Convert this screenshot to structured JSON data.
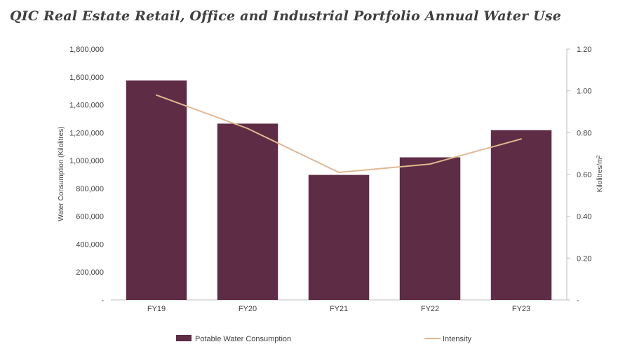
{
  "chart_data": {
    "type": "bar",
    "title": "QIC Real Estate Retail, Office and Industrial Portfolio Annual Water Use",
    "categories": [
      "FY19",
      "FY20",
      "FY21",
      "FY22",
      "FY23"
    ],
    "series": [
      {
        "name": "Potable Water Consumption",
        "type": "bar",
        "axis": "left",
        "color": "#5e2c44",
        "values": [
          1575000,
          1265000,
          897000,
          1023000,
          1218000
        ]
      },
      {
        "name": "Intensity",
        "type": "line",
        "axis": "right",
        "color": "#dfb88f",
        "values": [
          0.98,
          0.82,
          0.61,
          0.65,
          0.77
        ]
      }
    ],
    "ylabel": "Water Consumption (Kilolitres)",
    "ylabel_right_base": "Kilolitres/m",
    "ylabel_right_sup": "2",
    "ylim": [
      0,
      1800000
    ],
    "ylim_right": [
      0,
      1.2
    ],
    "yticks": [
      "-",
      "200,000",
      "400,000",
      "600,000",
      "800,000",
      "1,000,000",
      "1,200,000",
      "1,400,000",
      "1,600,000",
      "1,800,000"
    ],
    "yticks_right": [
      "-",
      "0.20",
      "0.40",
      "0.60",
      "0.80",
      "1.00",
      "1.20"
    ],
    "grid": false,
    "legend_position": "bottom"
  }
}
